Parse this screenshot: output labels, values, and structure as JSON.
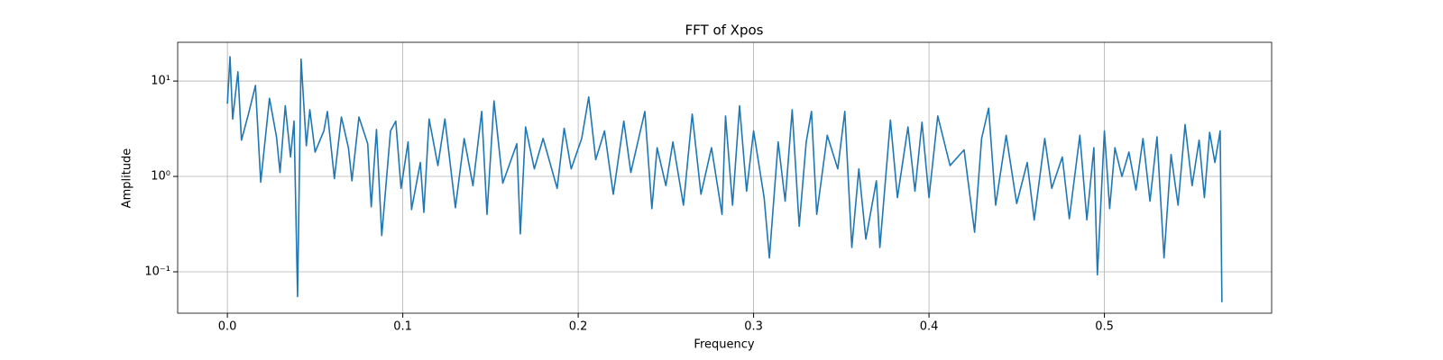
{
  "chart_data": {
    "type": "line",
    "title": "FFT of Xpos",
    "xlabel": "Frequency",
    "ylabel": "Amplitude",
    "yscale": "log",
    "grid": true,
    "xlim": [
      -0.02835,
      0.59535
    ],
    "ylim": [
      0.0368,
      25.5
    ],
    "xticks": [
      {
        "value": 0,
        "label": "0.0"
      },
      0.1,
      0.2,
      0.3,
      0.4,
      0.5
    ],
    "yticks": [
      {
        "value": 0.1,
        "label": "10⁻¹"
      },
      {
        "value": 1,
        "label": "10⁰"
      },
      {
        "value": 10,
        "label": "10¹"
      }
    ],
    "series": [
      {
        "color": "#1f77b4",
        "x": [
          0,
          0.0015,
          0.003,
          0.006,
          0.008,
          0.012,
          0.016,
          0.019,
          0.024,
          0.028,
          0.03,
          0.033,
          0.036,
          0.038,
          0.04,
          0.042,
          0.045,
          0.047,
          0.05,
          0.055,
          0.057,
          0.061,
          0.065,
          0.069,
          0.071,
          0.075,
          0.08,
          0.082,
          0.085,
          0.088,
          0.093,
          0.096,
          0.099,
          0.103,
          0.105,
          0.11,
          0.112,
          0.115,
          0.12,
          0.124,
          0.13,
          0.135,
          0.14,
          0.145,
          0.148,
          0.152,
          0.157,
          0.165,
          0.167,
          0.17,
          0.175,
          0.18,
          0.188,
          0.192,
          0.196,
          0.202,
          0.206,
          0.21,
          0.215,
          0.22,
          0.226,
          0.23,
          0.238,
          0.242,
          0.245,
          0.25,
          0.254,
          0.26,
          0.265,
          0.27,
          0.276,
          0.282,
          0.284,
          0.288,
          0.292,
          0.296,
          0.3,
          0.306,
          0.309,
          0.314,
          0.318,
          0.322,
          0.326,
          0.33,
          0.333,
          0.336,
          0.342,
          0.348,
          0.352,
          0.356,
          0.36,
          0.364,
          0.37,
          0.372,
          0.378,
          0.382,
          0.388,
          0.392,
          0.396,
          0.4,
          0.405,
          0.412,
          0.42,
          0.426,
          0.43,
          0.434,
          0.438,
          0.444,
          0.45,
          0.456,
          0.46,
          0.466,
          0.47,
          0.476,
          0.48,
          0.486,
          0.49,
          0.494,
          0.496,
          0.5,
          0.503,
          0.506,
          0.51,
          0.514,
          0.518,
          0.522,
          0.526,
          0.53,
          0.534,
          0.538,
          0.542,
          0.546,
          0.55,
          0.554,
          0.557,
          0.56,
          0.563,
          0.566,
          0.567
        ],
        "values": [
          5.8,
          18,
          4,
          12.5,
          2.4,
          4.5,
          9,
          0.87,
          6.6,
          2.6,
          1.1,
          5.5,
          1.6,
          3.8,
          0.055,
          17,
          2.1,
          5,
          1.8,
          3,
          4.8,
          0.95,
          4.2,
          2,
          0.9,
          4.2,
          2.2,
          0.48,
          3.1,
          0.24,
          3,
          3.8,
          0.75,
          2.3,
          0.45,
          1.4,
          0.42,
          4,
          1.3,
          4,
          0.47,
          2.5,
          0.8,
          4.8,
          0.4,
          6.2,
          0.85,
          2.2,
          0.25,
          3.3,
          1.2,
          2.5,
          0.75,
          3.2,
          1.2,
          2.5,
          6.8,
          1.5,
          3,
          0.65,
          3.8,
          1.1,
          4.8,
          0.46,
          2,
          0.8,
          2.3,
          0.5,
          4.5,
          0.65,
          2,
          0.4,
          4.3,
          0.5,
          5.5,
          0.7,
          3,
          0.6,
          0.14,
          2.3,
          0.55,
          5,
          0.3,
          2.3,
          4.8,
          0.4,
          2.7,
          1.2,
          4.8,
          0.18,
          1.2,
          0.22,
          0.9,
          0.18,
          3.9,
          0.6,
          3.3,
          0.7,
          3.7,
          0.6,
          4.3,
          1.3,
          1.9,
          0.26,
          2.5,
          5.2,
          0.5,
          2.7,
          0.52,
          1.4,
          0.35,
          2.5,
          0.75,
          1.6,
          0.36,
          2.7,
          0.35,
          2,
          0.093,
          3,
          0.46,
          2,
          1,
          1.8,
          0.72,
          2.5,
          0.55,
          2.6,
          0.14,
          1.7,
          0.5,
          3.5,
          0.8,
          2.4,
          0.6,
          2.9,
          1.4,
          3,
          0.048
        ]
      }
    ]
  }
}
